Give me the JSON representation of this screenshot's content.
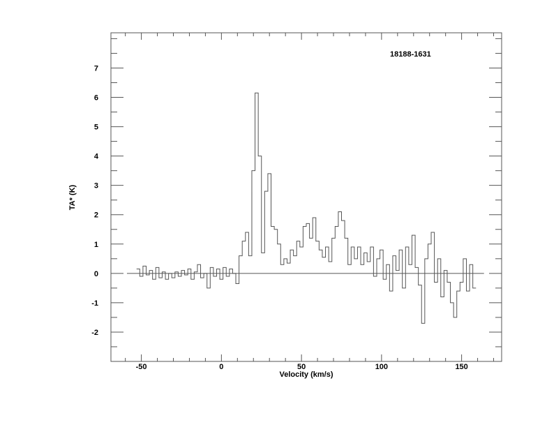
{
  "chart_data": {
    "type": "line",
    "style": "histogram-step",
    "title": "18188-1631",
    "xlabel": "Velocity (km/s)",
    "ylabel": "TA* (K)",
    "xlim": [
      -69,
      175
    ],
    "ylim": [
      -3,
      8.2
    ],
    "xticks": [
      -50,
      0,
      50,
      100,
      150
    ],
    "yticks": [
      -2,
      -1,
      0,
      1,
      2,
      3,
      4,
      5,
      6,
      7
    ],
    "x_minor_step": 10,
    "y_minor_step": 0.5,
    "grid": false,
    "line_color": "#555555",
    "baseline": {
      "y": 0,
      "x_range": [
        -59,
        164
      ]
    },
    "series": [
      {
        "x": [
          -52,
          -50,
          -48,
          -46,
          -44,
          -42,
          -40,
          -38,
          -36,
          -34,
          -32,
          -30,
          -28,
          -26,
          -24,
          -22,
          -20,
          -18,
          -16,
          -14,
          -12,
          -10,
          -8,
          -6,
          -4,
          -2,
          0,
          2,
          4,
          6,
          8,
          10,
          12,
          14,
          16,
          18,
          20,
          22,
          24,
          26,
          28,
          30,
          32,
          34,
          36,
          38,
          40,
          42,
          44,
          46,
          48,
          50,
          52,
          54,
          56,
          58,
          60,
          62,
          64,
          66,
          68,
          70,
          72,
          74,
          76,
          78,
          80,
          82,
          84,
          86,
          88,
          90,
          92,
          94,
          96,
          98,
          100,
          102,
          104,
          106,
          108,
          110,
          112,
          114,
          116,
          118,
          120,
          122,
          124,
          126,
          128,
          130,
          132,
          134,
          136,
          138,
          140,
          142,
          144,
          146,
          148,
          150,
          152,
          154,
          156,
          158
        ],
        "y": [
          0.15,
          -0.1,
          0.25,
          -0.05,
          0.1,
          -0.2,
          0.2,
          -0.15,
          0.05,
          -0.2,
          0.0,
          -0.15,
          0.05,
          -0.1,
          0.1,
          -0.05,
          0.15,
          -0.2,
          0.05,
          0.3,
          -0.15,
          0.0,
          -0.5,
          0.2,
          -0.1,
          0.15,
          -0.2,
          0.2,
          -0.1,
          0.15,
          0.0,
          -0.35,
          0.6,
          1.1,
          1.4,
          0.6,
          3.5,
          6.15,
          4.0,
          0.7,
          2.8,
          3.4,
          1.6,
          1.5,
          1.0,
          0.3,
          0.5,
          0.35,
          0.8,
          0.6,
          1.1,
          0.9,
          1.6,
          1.7,
          1.2,
          1.9,
          1.1,
          0.8,
          0.55,
          0.9,
          0.4,
          1.2,
          1.6,
          2.1,
          1.8,
          1.2,
          0.3,
          0.9,
          0.5,
          0.9,
          0.3,
          0.7,
          0.4,
          0.9,
          -0.1,
          0.5,
          0.8,
          -0.2,
          0.3,
          -0.6,
          0.6,
          0.1,
          0.8,
          -0.5,
          0.9,
          0.3,
          1.3,
          0.2,
          -0.4,
          -1.7,
          0.5,
          1.0,
          1.4,
          -0.3,
          0.5,
          -0.8,
          0.1,
          -0.3,
          -1.0,
          -1.5,
          -0.6,
          -0.3,
          0.5,
          -0.6,
          0.3,
          -0.5
        ]
      }
    ]
  }
}
